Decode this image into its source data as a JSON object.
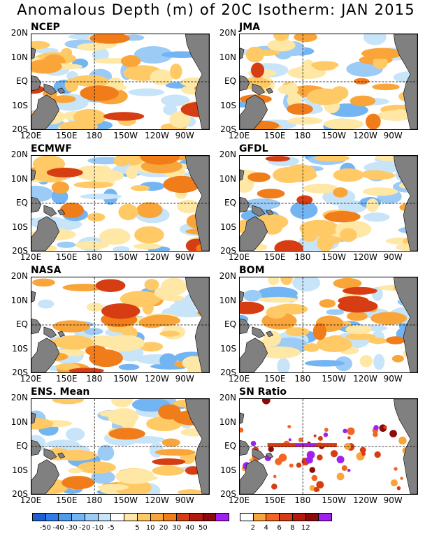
{
  "title": "Anomalous Depth (m) of 20C Isotherm: JAN 2015",
  "lat_labels": [
    "20N",
    "10N",
    "EQ",
    "10S",
    "20S"
  ],
  "lon_labels": [
    "120E",
    "150E",
    "180",
    "150W",
    "120W",
    "90W"
  ],
  "panels": [
    {
      "label": "NCEP"
    },
    {
      "label": "JMA"
    },
    {
      "label": "ECMWF"
    },
    {
      "label": "GFDL"
    },
    {
      "label": "NASA"
    },
    {
      "label": "BOM"
    },
    {
      "label": "ENS. Mean"
    },
    {
      "label": "SN Ratio"
    }
  ],
  "colorbar_anomaly": {
    "colors": [
      "#1f5fd6",
      "#2f7de8",
      "#4f9bf0",
      "#73b4f2",
      "#9ccbf5",
      "#c8e4f8",
      "#ffffff",
      "#ffe7a5",
      "#ffc965",
      "#f9a53a",
      "#f07c1a",
      "#d63d12",
      "#b41a0e",
      "#8e0a0a",
      "#a020f0"
    ],
    "labels": [
      "-50",
      "-40",
      "-30",
      "-20",
      "-10",
      "-5",
      "5",
      "10",
      "20",
      "30",
      "40",
      "50"
    ]
  },
  "colorbar_snr": {
    "colors": [
      "#ffffff",
      "#f9a53a",
      "#f26522",
      "#d63d12",
      "#b41a0e",
      "#8e0a0a",
      "#a020f0"
    ],
    "labels": [
      "2",
      "4",
      "6",
      "8",
      "12"
    ]
  }
}
